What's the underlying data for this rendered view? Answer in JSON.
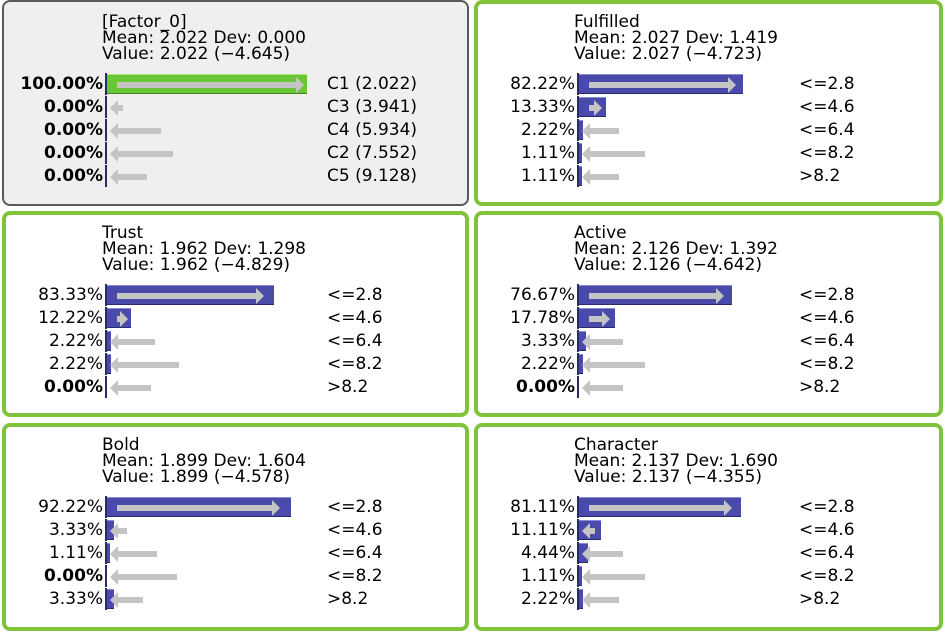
{
  "nodes": [
    {
      "title": "[Factor_0]",
      "mean_line": "Mean: 2.022 Dev: 0.000",
      "value_line": "Value: 2.022 (−4.645)",
      "style": "plain",
      "states": [
        {
          "pct": "100.00%",
          "label": "C1 (2.022)",
          "bold": true,
          "prob": 1.0,
          "ghost": 1.0,
          "ghost_dir": "right",
          "selected": true
        },
        {
          "pct": "0.00%",
          "label": "C3 (3.941)",
          "bold": true,
          "prob": 0.0,
          "ghost": 0.08,
          "ghost_dir": "left"
        },
        {
          "pct": "0.00%",
          "label": "C4 (5.934)",
          "bold": true,
          "prob": 0.0,
          "ghost": 0.27,
          "ghost_dir": "left"
        },
        {
          "pct": "0.00%",
          "label": "C2 (7.552)",
          "bold": true,
          "prob": 0.0,
          "ghost": 0.33,
          "ghost_dir": "left"
        },
        {
          "pct": "0.00%",
          "label": "C5 (9.128)",
          "bold": true,
          "prob": 0.0,
          "ghost": 0.2,
          "ghost_dir": "left"
        }
      ]
    },
    {
      "title": "Fulfilled",
      "mean_line": "Mean: 2.027 Dev: 1.419",
      "value_line": "Value: 2.027 (−4.723)",
      "style": "green",
      "states": [
        {
          "pct": "82.22%",
          "label": "<=2.8",
          "bold": false,
          "prob": 0.8222,
          "ghost": 0.8,
          "ghost_dir": "right"
        },
        {
          "pct": "13.33%",
          "label": "<=4.6",
          "bold": false,
          "prob": 0.1333,
          "ghost": 0.13,
          "ghost_dir": "right"
        },
        {
          "pct": "2.22%",
          "label": "<=6.4",
          "bold": false,
          "prob": 0.0222,
          "ghost": 0.2,
          "ghost_dir": "left"
        },
        {
          "pct": "1.11%",
          "label": "<=8.2",
          "bold": false,
          "prob": 0.0111,
          "ghost": 0.33,
          "ghost_dir": "left"
        },
        {
          "pct": "1.11%",
          "label": ">8.2",
          "bold": false,
          "prob": 0.0111,
          "ghost": 0.2,
          "ghost_dir": "left"
        }
      ]
    },
    {
      "title": "Trust",
      "mean_line": "Mean: 1.962 Dev: 1.298",
      "value_line": "Value: 1.962 (−4.829)",
      "style": "green",
      "states": [
        {
          "pct": "83.33%",
          "label": "<=2.8",
          "bold": false,
          "prob": 0.8333,
          "ghost": 0.8,
          "ghost_dir": "right"
        },
        {
          "pct": "12.22%",
          "label": "<=4.6",
          "bold": false,
          "prob": 0.1222,
          "ghost": 0.11,
          "ghost_dir": "right"
        },
        {
          "pct": "2.22%",
          "label": "<=6.4",
          "bold": false,
          "prob": 0.0222,
          "ghost": 0.24,
          "ghost_dir": "left"
        },
        {
          "pct": "2.22%",
          "label": "<=8.2",
          "bold": false,
          "prob": 0.0222,
          "ghost": 0.36,
          "ghost_dir": "left"
        },
        {
          "pct": "0.00%",
          "label": ">8.2",
          "bold": true,
          "prob": 0.0,
          "ghost": 0.22,
          "ghost_dir": "left"
        }
      ]
    },
    {
      "title": "Active",
      "mean_line": "Mean: 2.126 Dev: 1.392",
      "value_line": "Value: 2.126 (−4.642)",
      "style": "green",
      "states": [
        {
          "pct": "76.67%",
          "label": "<=2.8",
          "bold": false,
          "prob": 0.7667,
          "ghost": 0.74,
          "ghost_dir": "right"
        },
        {
          "pct": "17.78%",
          "label": "<=4.6",
          "bold": false,
          "prob": 0.1778,
          "ghost": 0.17,
          "ghost_dir": "right"
        },
        {
          "pct": "3.33%",
          "label": "<=6.4",
          "bold": false,
          "prob": 0.0333,
          "ghost": 0.22,
          "ghost_dir": "left"
        },
        {
          "pct": "2.22%",
          "label": "<=8.2",
          "bold": false,
          "prob": 0.0222,
          "ghost": 0.33,
          "ghost_dir": "left"
        },
        {
          "pct": "0.00%",
          "label": ">8.2",
          "bold": true,
          "prob": 0.0,
          "ghost": 0.22,
          "ghost_dir": "left"
        }
      ]
    },
    {
      "title": "Bold",
      "mean_line": "Mean: 1.899 Dev: 1.604",
      "value_line": "Value: 1.899 (−4.578)",
      "style": "green",
      "states": [
        {
          "pct": "92.22%",
          "label": "<=2.8",
          "bold": false,
          "prob": 0.9222,
          "ghost": 0.88,
          "ghost_dir": "right"
        },
        {
          "pct": "3.33%",
          "label": "<=4.6",
          "bold": false,
          "prob": 0.0333,
          "ghost": 0.1,
          "ghost_dir": "left"
        },
        {
          "pct": "1.11%",
          "label": "<=6.4",
          "bold": false,
          "prob": 0.0111,
          "ghost": 0.25,
          "ghost_dir": "left"
        },
        {
          "pct": "0.00%",
          "label": "<=8.2",
          "bold": true,
          "prob": 0.0,
          "ghost": 0.35,
          "ghost_dir": "left"
        },
        {
          "pct": "3.33%",
          "label": ">8.2",
          "bold": false,
          "prob": 0.0333,
          "ghost": 0.18,
          "ghost_dir": "left"
        }
      ]
    },
    {
      "title": "Character",
      "mean_line": "Mean: 2.137 Dev: 1.690",
      "value_line": "Value: 2.137 (−4.355)",
      "style": "green",
      "states": [
        {
          "pct": "81.11%",
          "label": "<=2.8",
          "bold": false,
          "prob": 0.8111,
          "ghost": 0.78,
          "ghost_dir": "right"
        },
        {
          "pct": "11.11%",
          "label": "<=4.6",
          "bold": false,
          "prob": 0.1111,
          "ghost": 0.08,
          "ghost_dir": "left"
        },
        {
          "pct": "4.44%",
          "label": "<=6.4",
          "bold": false,
          "prob": 0.0444,
          "ghost": 0.22,
          "ghost_dir": "left"
        },
        {
          "pct": "1.11%",
          "label": "<=8.2",
          "bold": false,
          "prob": 0.0111,
          "ghost": 0.33,
          "ghost_dir": "left"
        },
        {
          "pct": "2.22%",
          "label": ">8.2",
          "bold": false,
          "prob": 0.0222,
          "ghost": 0.2,
          "ghost_dir": "left"
        }
      ]
    }
  ],
  "colors": {
    "bar": "#4a4aaa",
    "selected_bar": "#6ac838",
    "node_border": "#80c43c",
    "ghost_bar": "#c4c4c4"
  }
}
